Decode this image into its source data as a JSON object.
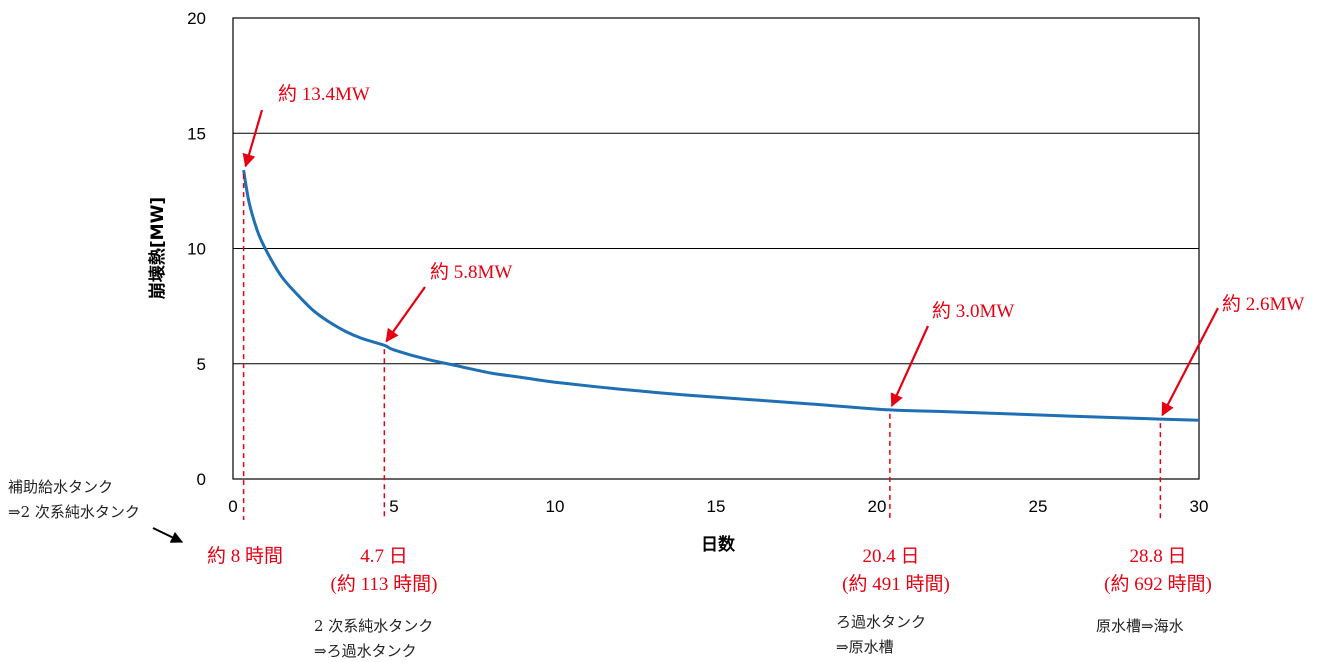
{
  "chart_data": {
    "type": "line",
    "xlabel": "日数",
    "ylabel": "崩壊熱[MW]",
    "xlim": [
      0,
      30
    ],
    "ylim": [
      0,
      20
    ],
    "x_ticks": [
      "0",
      "5",
      "10",
      "15",
      "20",
      "25",
      "30"
    ],
    "y_ticks": [
      "0",
      "5",
      "10",
      "15",
      "20"
    ],
    "grid": "horizontal",
    "series": [
      {
        "color": "#1f6fb5",
        "x": [
          0.33,
          0.5,
          0.75,
          1,
          1.5,
          2,
          2.5,
          3,
          3.5,
          4,
          4.7,
          5,
          6,
          7,
          8,
          9,
          10,
          12,
          14,
          16,
          18,
          20.4,
          22,
          24,
          26,
          28.8,
          30
        ],
        "y": [
          13.4,
          12.0,
          10.8,
          10.0,
          8.8,
          8.0,
          7.3,
          6.8,
          6.4,
          6.1,
          5.8,
          5.6,
          5.2,
          4.9,
          4.6,
          4.4,
          4.2,
          3.9,
          3.65,
          3.45,
          3.25,
          3.0,
          2.93,
          2.83,
          2.73,
          2.6,
          2.55
        ]
      }
    ],
    "annotations": [
      {
        "label": "約 13.4MW",
        "x": 0.33,
        "y": 13.4
      },
      {
        "label": "約 5.8MW",
        "x": 4.7,
        "y": 5.8
      },
      {
        "label": "約 3.0MW",
        "x": 20.4,
        "y": 3.0
      },
      {
        "label": "約 2.6MW",
        "x": 28.8,
        "y": 2.6
      }
    ]
  },
  "time_labels": {
    "t1": "約 8 時間",
    "t2_day": "4.7 日",
    "t2_hours": "(約 113 時間)",
    "t3_day": "20.4 日",
    "t3_hours": "(約 491 時間)",
    "t4_day": "28.8 日",
    "t4_hours": "(約 692 時間)"
  },
  "tank_notes": {
    "n1_line1": "補助給水タンク",
    "n1_line2": "⇒2 次系純水タンク",
    "n2_line1": "2 次系純水タンク",
    "n2_line2": "⇒ろ過水タンク",
    "n3_line1": "ろ過水タンク",
    "n3_line2": "⇒原水槽",
    "n4_line1": "原水槽⇒海水"
  },
  "colors": {
    "accent_red": "#e60012",
    "curve_blue": "#1f6fb5"
  }
}
